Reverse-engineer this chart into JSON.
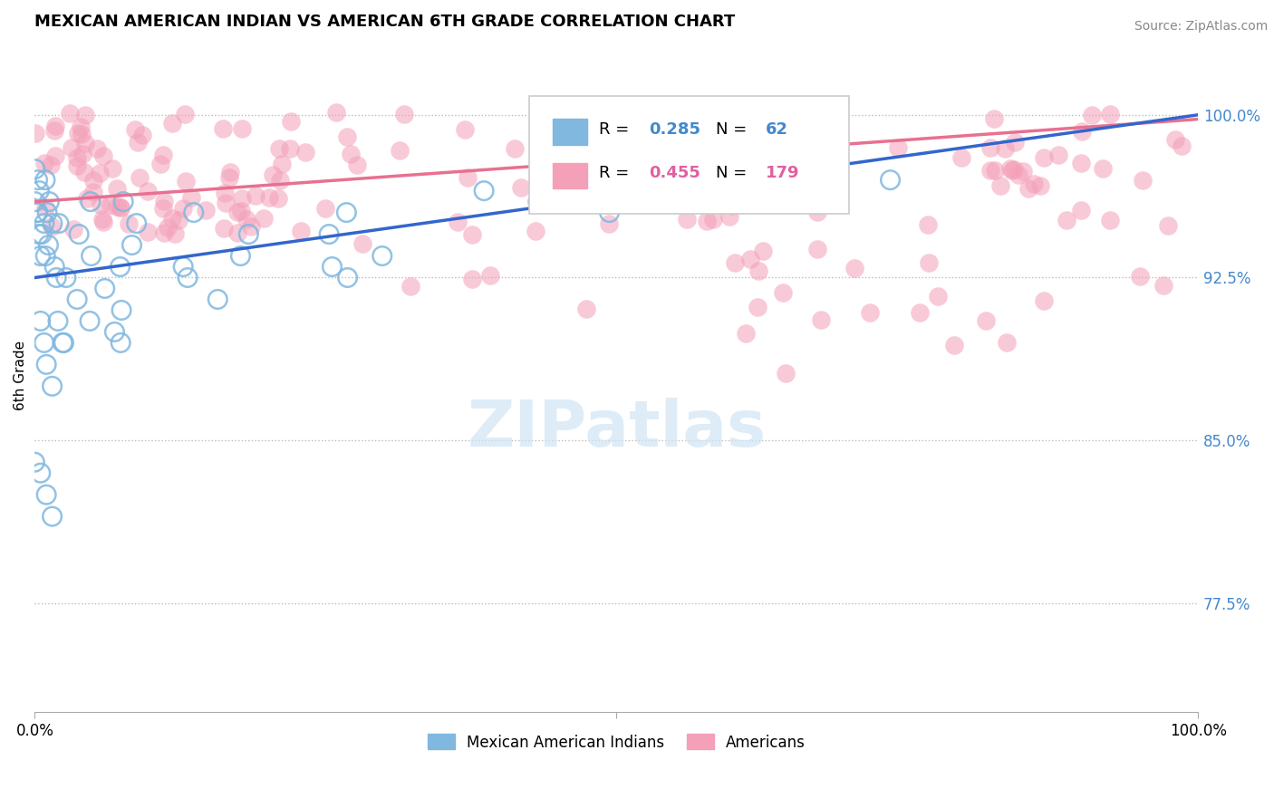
{
  "title": "MEXICAN AMERICAN INDIAN VS AMERICAN 6TH GRADE CORRELATION CHART",
  "source": "Source: ZipAtlas.com",
  "ylabel": "6th Grade",
  "x_min": 0.0,
  "x_max": 1.0,
  "y_min": 0.725,
  "y_max": 1.035,
  "y_ticks": [
    0.775,
    0.85,
    0.925,
    1.0
  ],
  "y_tick_labels": [
    "77.5%",
    "85.0%",
    "92.5%",
    "100.0%"
  ],
  "legend_entries": [
    "Mexican American Indians",
    "Americans"
  ],
  "blue_color": "#80b8e0",
  "pink_color": "#f4a0b8",
  "blue_line_color": "#3366cc",
  "pink_line_color": "#e87090",
  "R_blue": 0.285,
  "N_blue": 62,
  "R_pink": 0.455,
  "N_pink": 179,
  "blue_intercept": 0.925,
  "blue_slope": 0.075,
  "pink_intercept": 0.96,
  "pink_slope": 0.038,
  "watermark": "ZIPatlas",
  "tick_label_color": "#4488cc"
}
